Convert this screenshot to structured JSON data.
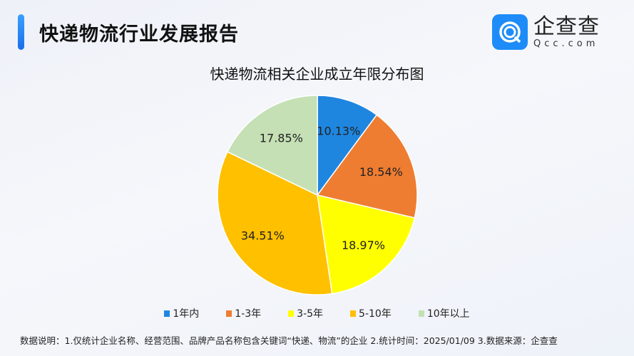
{
  "header": {
    "title": "快递物流行业发展报告",
    "logo_cn": "企查查",
    "logo_en": "Qcc.com",
    "logo_icon": "qcc-logo-icon"
  },
  "chart_data": {
    "type": "pie",
    "title": "快递物流相关企业成立年限分布图",
    "categories": [
      "1年内",
      "1-3年",
      "3-5年",
      "5-10年",
      "10年以上"
    ],
    "values": [
      10.13,
      18.54,
      18.97,
      34.51,
      17.85
    ],
    "labels": [
      "10.13%",
      "18.54%",
      "18.97%",
      "34.51%",
      "17.85%"
    ],
    "colors": [
      "#1f86e0",
      "#ee7d31",
      "#ffff00",
      "#ffc000",
      "#c5e0b4"
    ],
    "start": "top",
    "direction": "clockwise",
    "legend_position": "bottom"
  },
  "footer": {
    "note": "数据说明：1.仅统计企业名称、经营范围、品牌产品名称包含关键词“快递、物流”的企业   2.统计时间：2025/01/09    3.数据来源：企查查"
  }
}
